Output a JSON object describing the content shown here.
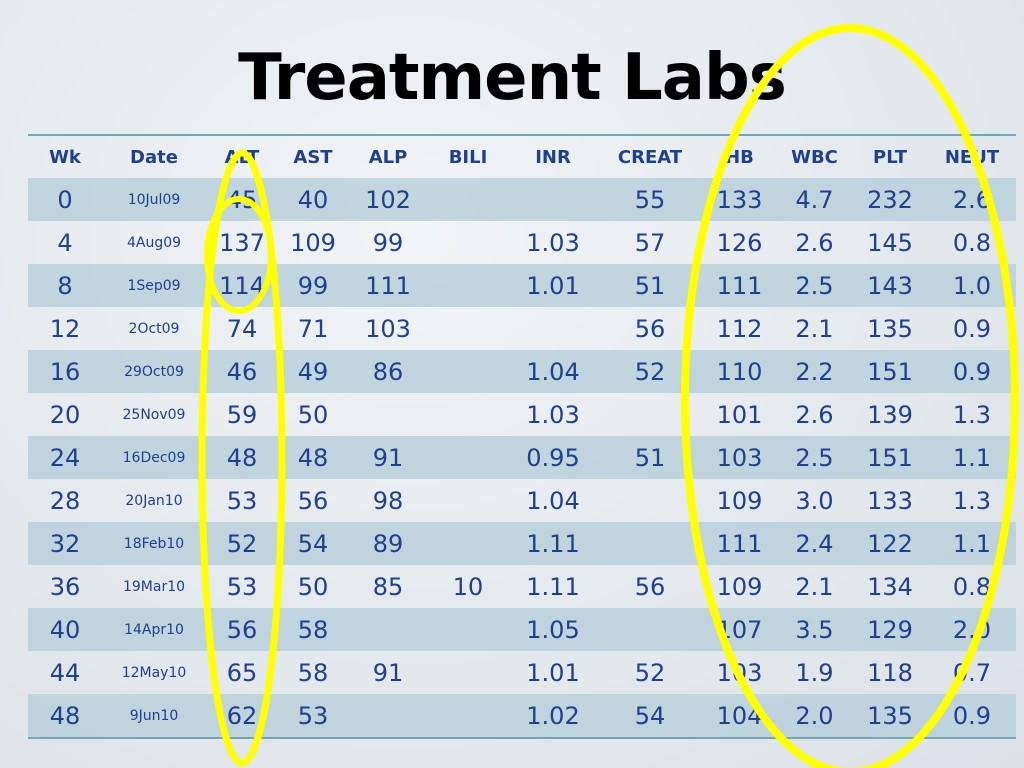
{
  "title": "Treatment Labs",
  "table": {
    "columns": [
      "Wk",
      "Date",
      "ALT",
      "AST",
      "ALP",
      "BILI",
      "INR",
      "CREAT",
      "HB",
      "WBC",
      "PLT",
      "NEUT"
    ],
    "rows": [
      [
        "0",
        "10Jul09",
        "45",
        "40",
        "102",
        "",
        "",
        "55",
        "133",
        "4.7",
        "232",
        "2.6"
      ],
      [
        "4",
        "4Aug09",
        "137",
        "109",
        "99",
        "",
        "1.03",
        "57",
        "126",
        "2.6",
        "145",
        "0.8"
      ],
      [
        "8",
        "1Sep09",
        "114",
        "99",
        "111",
        "",
        "1.01",
        "51",
        "111",
        "2.5",
        "143",
        "1.0"
      ],
      [
        "12",
        "2Oct09",
        "74",
        "71",
        "103",
        "",
        "",
        "56",
        "112",
        "2.1",
        "135",
        "0.9"
      ],
      [
        "16",
        "29Oct09",
        "46",
        "49",
        "86",
        "",
        "1.04",
        "52",
        "110",
        "2.2",
        "151",
        "0.9"
      ],
      [
        "20",
        "25Nov09",
        "59",
        "50",
        "",
        "",
        "1.03",
        "",
        "101",
        "2.6",
        "139",
        "1.3"
      ],
      [
        "24",
        "16Dec09",
        "48",
        "48",
        "91",
        "",
        "0.95",
        "51",
        "103",
        "2.5",
        "151",
        "1.1"
      ],
      [
        "28",
        "20Jan10",
        "53",
        "56",
        "98",
        "",
        "1.04",
        "",
        "109",
        "3.0",
        "133",
        "1.3"
      ],
      [
        "32",
        "18Feb10",
        "52",
        "54",
        "89",
        "",
        "1.11",
        "",
        "111",
        "2.4",
        "122",
        "1.1"
      ],
      [
        "36",
        "19Mar10",
        "53",
        "50",
        "85",
        "10",
        "1.11",
        "56",
        "109",
        "2.1",
        "134",
        "0.8"
      ],
      [
        "40",
        "14Apr10",
        "56",
        "58",
        "",
        "",
        "1.05",
        "",
        "107",
        "3.5",
        "129",
        "2.0"
      ],
      [
        "44",
        "12May10",
        "65",
        "58",
        "91",
        "",
        "1.01",
        "52",
        "103",
        "1.9",
        "118",
        "0.7"
      ],
      [
        "48",
        "9Jun10",
        "62",
        "53",
        "",
        "",
        "1.02",
        "54",
        "104",
        "2.0",
        "135",
        "0.9"
      ]
    ]
  },
  "colors": {
    "title_text": "#000000",
    "table_text": "#1f3f8f",
    "row_band": "#b9d0da",
    "rule": "#6fa9b8",
    "highlight_ellipse": "#ffff00"
  }
}
